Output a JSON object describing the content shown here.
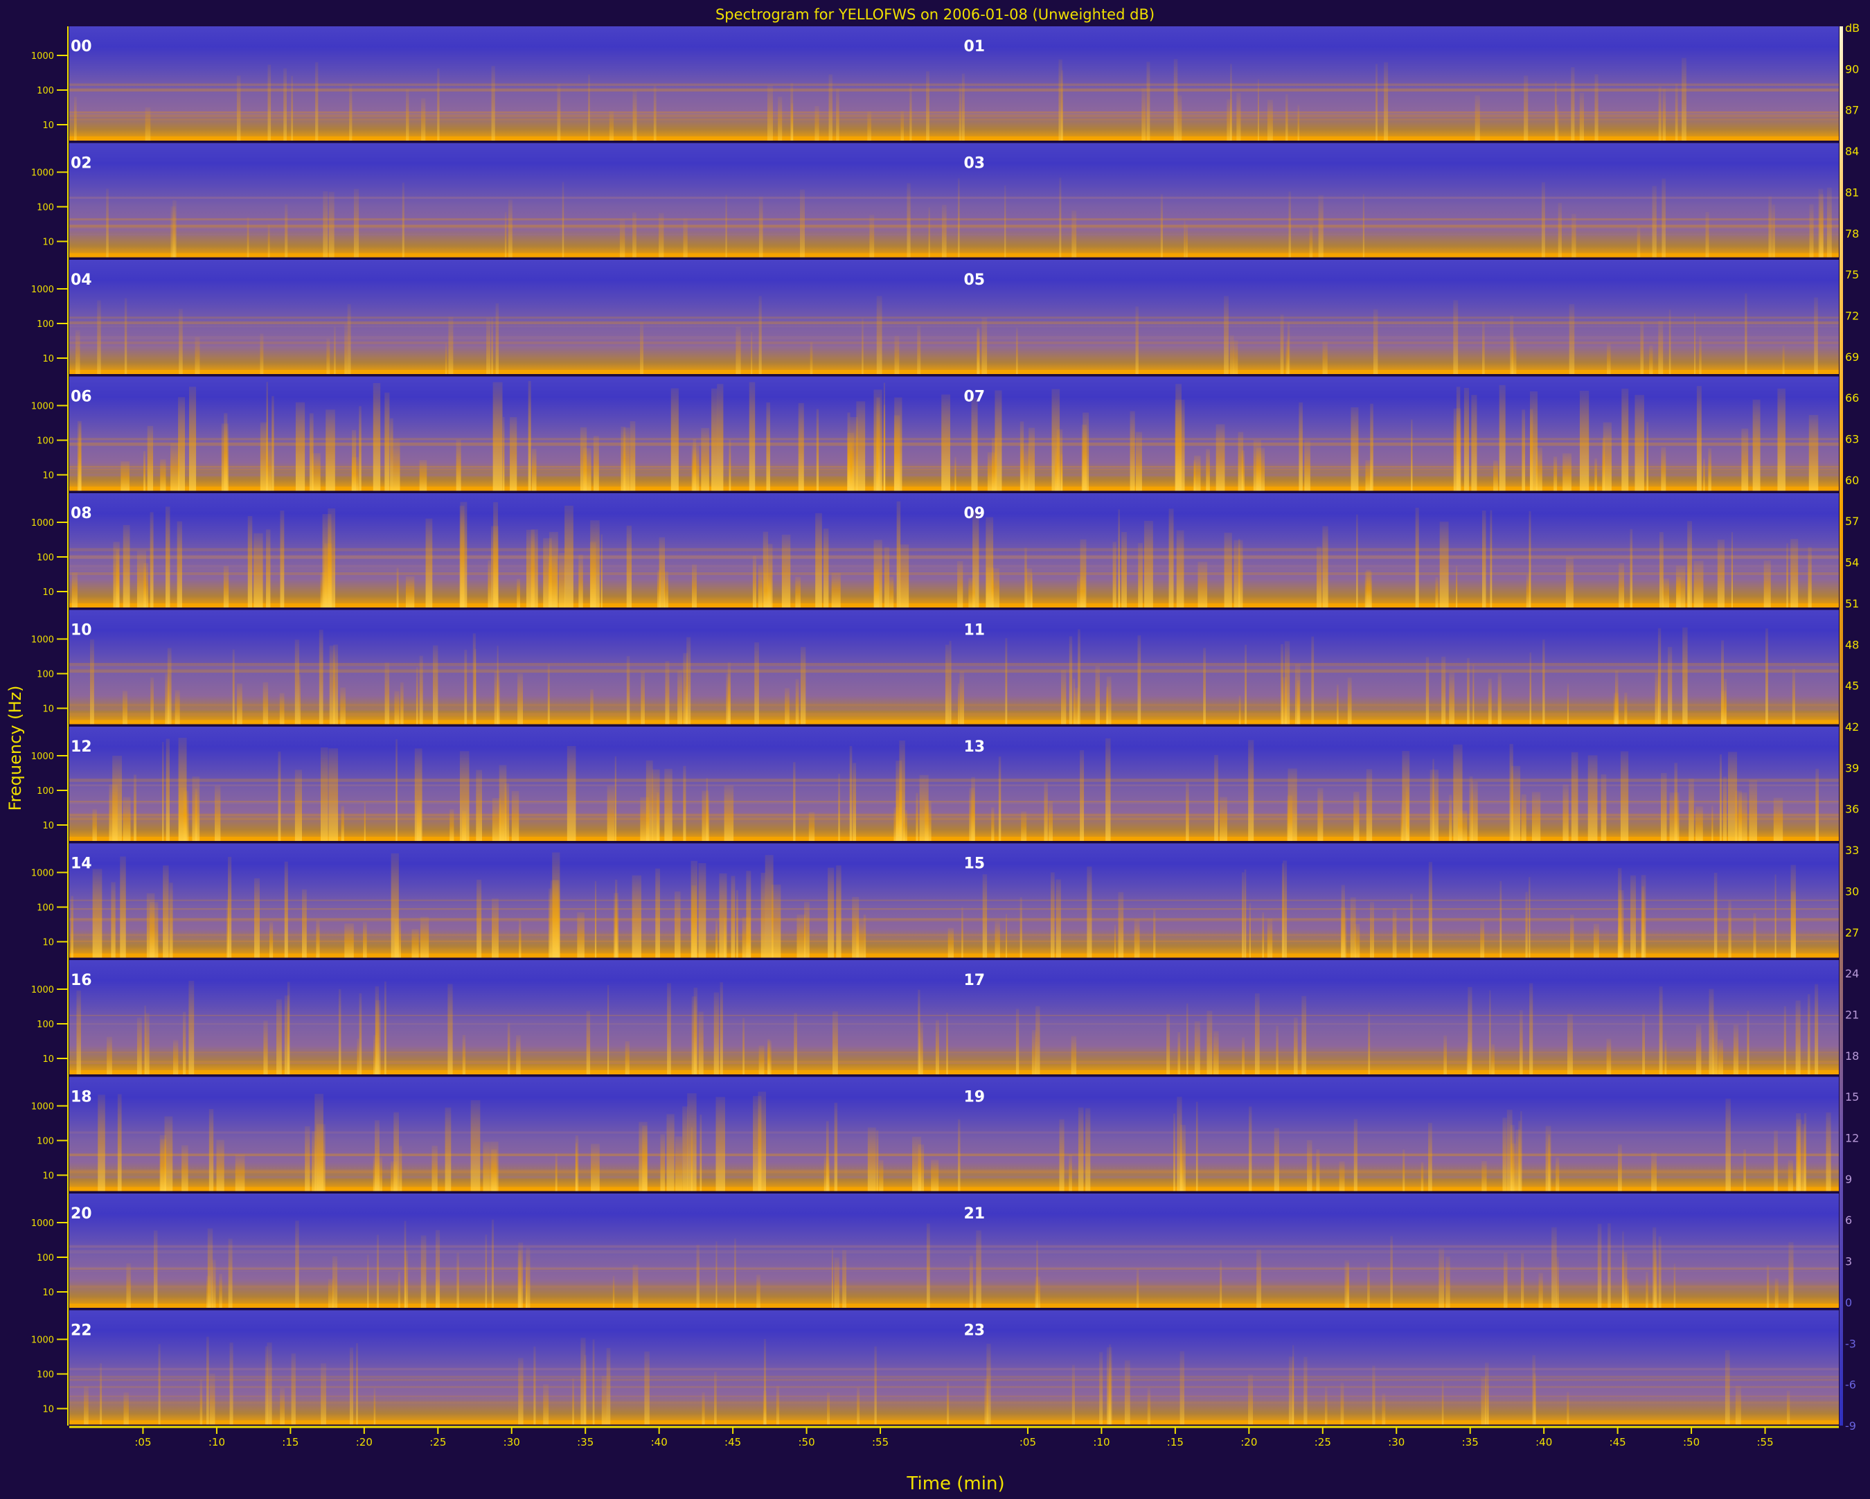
{
  "colors": {
    "background": "#1a0a40",
    "low": "#3f3bc4",
    "mid": "#8a64a0",
    "high": "#f5a300",
    "peak": "#fff2c8",
    "axis_text": "#f0e000"
  },
  "chart_data": {
    "type": "heatmap",
    "title": "Spectrogram for YELLOFWS on 2006-01-08 (Unweighted dB)",
    "xlabel": "Time (min)",
    "ylabel": "Frequency (Hz)",
    "y_ticks": [
      "1000",
      "100",
      "10"
    ],
    "colorbar_ticks": [
      "dB",
      "90",
      "87",
      "84",
      "81",
      "78",
      "75",
      "72",
      "69",
      "66",
      "63",
      "60",
      "57",
      "54",
      "51",
      "48",
      "45",
      "42",
      "39",
      "36",
      "33",
      "30",
      "27",
      "24",
      "21",
      "18",
      "15",
      "12",
      "9",
      "6",
      "3",
      "0",
      "-3",
      "-6",
      "-9"
    ],
    "colorbar_range_db": [
      -9,
      93
    ],
    "x_ticks_first_half": [
      ":05",
      ":10",
      ":15",
      ":20",
      ":25",
      ":30",
      ":35",
      ":40",
      ":45",
      ":50",
      ":55"
    ],
    "x_ticks_second_half": [
      ":05",
      ":10",
      ":15",
      ":20",
      ":25",
      ":30",
      ":35",
      ":40",
      ":45",
      ":50",
      ":55"
    ],
    "hours": [
      "00",
      "01",
      "02",
      "03",
      "04",
      "05",
      "06",
      "07",
      "08",
      "09",
      "10",
      "11",
      "12",
      "13",
      "14",
      "15",
      "16",
      "17",
      "18",
      "19",
      "20",
      "21",
      "22",
      "23"
    ],
    "hourly_activity": [
      0.25,
      0.25,
      0.2,
      0.2,
      0.2,
      0.25,
      0.75,
      0.7,
      0.7,
      0.6,
      0.5,
      0.5,
      0.65,
      0.6,
      0.65,
      0.5,
      0.45,
      0.4,
      0.55,
      0.45,
      0.35,
      0.3,
      0.35,
      0.25
    ]
  }
}
